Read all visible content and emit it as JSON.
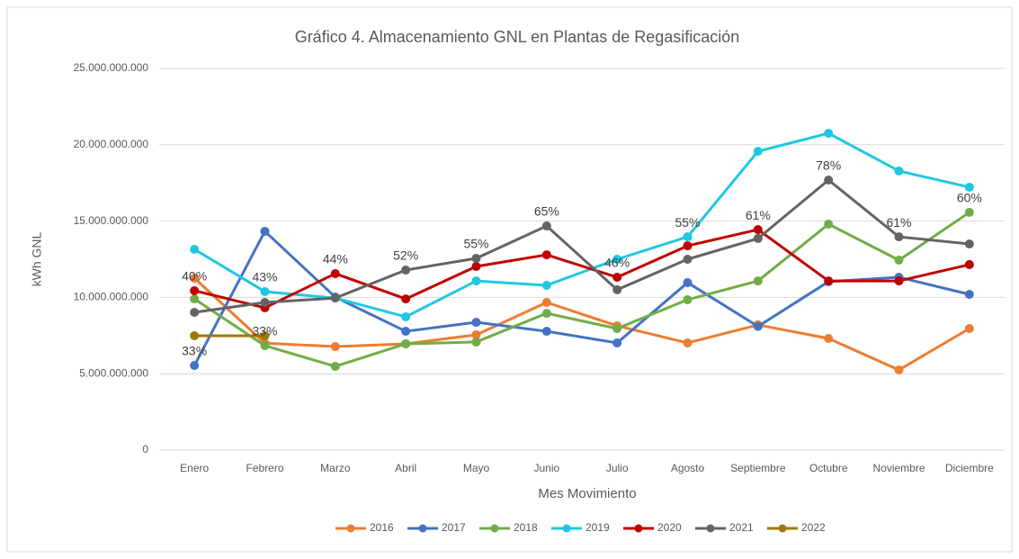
{
  "chart_data": {
    "type": "line",
    "title": "Gráfico 4. Almacenamiento GNL en Plantas de Regasificación",
    "xlabel": "Mes Movimiento",
    "ylabel": "kWh GNL",
    "categories": [
      "Enero",
      "Febrero",
      "Marzo",
      "Abril",
      "Mayo",
      "Junio",
      "Julio",
      "Agosto",
      "Septiembre",
      "Octubre",
      "Noviembre",
      "Diciembre"
    ],
    "ylim": [
      0,
      25000000000
    ],
    "yticks": [
      0,
      {
        "value": 5000000000,
        "label": "5.000.000.000"
      },
      {
        "value": 10000000000,
        "label": "10.000.000.000"
      },
      {
        "value": 15000000000,
        "label": "15.000.000.000"
      },
      {
        "value": 20000000000,
        "label": "20.000.000.000"
      },
      {
        "value": 25000000000,
        "label": "25.000.000.000"
      }
    ],
    "grid": true,
    "legend": "bottom",
    "series": [
      {
        "name": "2016",
        "color": "#ed7d31",
        "values": [
          11260000000,
          7000000000,
          6780000000,
          6960000000,
          7550000000,
          9670000000,
          8140000000,
          7020000000,
          8200000000,
          7310000000,
          5250000000,
          7960000000
        ]
      },
      {
        "name": "2017",
        "color": "#4472c4",
        "values": [
          5540000000,
          14330000000,
          10020000000,
          7780000000,
          8370000000,
          7780000000,
          7020000000,
          10970000000,
          8100000000,
          11030000000,
          11320000000,
          10200000000
        ]
      },
      {
        "name": "2018",
        "color": "#70ad47",
        "values": [
          9900000000,
          6840000000,
          5480000000,
          6960000000,
          7080000000,
          8960000000,
          7960000000,
          9850000000,
          11080000000,
          14800000000,
          12440000000,
          15570000000
        ]
      },
      {
        "name": "2019",
        "color": "#1ec8e0",
        "values": [
          13150000000,
          10380000000,
          9960000000,
          8730000000,
          11080000000,
          10790000000,
          12500000000,
          13970000000,
          19570000000,
          20750000000,
          18280000000,
          17220000000
        ]
      },
      {
        "name": "2020",
        "color": "#c00000",
        "values": [
          10440000000,
          9320000000,
          11560000000,
          9900000000,
          12030000000,
          12790000000,
          11320000000,
          13380000000,
          14440000000,
          11080000000,
          11080000000,
          12150000000
        ]
      },
      {
        "name": "2021",
        "color": "#646464",
        "values": [
          9020000000,
          9670000000,
          9960000000,
          11790000000,
          12560000000,
          14680000000,
          10500000000,
          12500000000,
          13860000000,
          17690000000,
          13970000000,
          13500000000
        ]
      },
      {
        "name": "2022",
        "color": "#9c7a00",
        "values": [
          7490000000,
          7490000000,
          null,
          null,
          null,
          null,
          null,
          null,
          null,
          null,
          null,
          null
        ]
      }
    ],
    "annotations": [
      {
        "text": "40%",
        "category": "Enero",
        "series": "2020"
      },
      {
        "text": "33%",
        "category": "Enero",
        "series": "2017"
      },
      {
        "text": "43%",
        "category": "Febrero",
        "series": "2019"
      },
      {
        "text": "33%",
        "category": "Febrero",
        "series": "2018"
      },
      {
        "text": "44%",
        "category": "Marzo",
        "series": "2020"
      },
      {
        "text": "52%",
        "category": "Abril",
        "series": "2021"
      },
      {
        "text": "55%",
        "category": "Mayo",
        "series": "2021"
      },
      {
        "text": "65%",
        "category": "Junio",
        "series": "2021"
      },
      {
        "text": "46%",
        "category": "Julio",
        "series": "2020"
      },
      {
        "text": "55%",
        "category": "Agosto",
        "series": "2019"
      },
      {
        "text": "61%",
        "category": "Septiembre",
        "series": "2020"
      },
      {
        "text": "78%",
        "category": "Octubre",
        "series": "2021"
      },
      {
        "text": "61%",
        "category": "Noviembre",
        "series": "2021"
      },
      {
        "text": "60%",
        "category": "Diciembre",
        "series": "2018"
      }
    ]
  }
}
